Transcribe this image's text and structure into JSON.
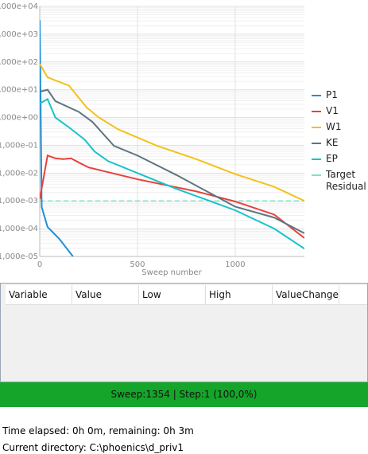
{
  "chart_data": {
    "type": "line",
    "xlabel": "Sweep number",
    "xlim": [
      0,
      1354
    ],
    "xticks": [
      0,
      500,
      1000
    ],
    "ylim": [
      1e-05,
      10000
    ],
    "log_y": true,
    "grid": true,
    "legend": "right",
    "yticks": [
      {
        "value": 10000,
        "label": "1,000e+04"
      },
      {
        "value": 1000,
        "label": "1,000e+03"
      },
      {
        "value": 100,
        "label": "1,000e+02"
      },
      {
        "value": 10,
        "label": "1,000e+01"
      },
      {
        "value": 1,
        "label": "1,000e+00"
      },
      {
        "value": 0.1,
        "label": "1,000e-01"
      },
      {
        "value": 0.01,
        "label": "1,000e-02"
      },
      {
        "value": 0.001,
        "label": "1,000e-03"
      },
      {
        "value": 0.0001,
        "label": "1,000e-04"
      },
      {
        "value": 1e-05,
        "label": "1,000e-05"
      }
    ],
    "series": [
      {
        "name": "P1",
        "color": "#1f8fd6",
        "x": [
          0,
          10,
          40,
          100,
          170
        ],
        "values": [
          3200,
          0.0006,
          0.000115,
          4.3e-05,
          1e-05
        ]
      },
      {
        "name": "V1",
        "color": "#e8413c",
        "x": [
          0,
          40,
          80,
          120,
          160,
          200,
          250,
          380,
          500,
          800,
          1000,
          1200,
          1354
        ],
        "values": [
          0.00115,
          0.043,
          0.034,
          0.032,
          0.034,
          0.024,
          0.016,
          0.0096,
          0.006,
          0.0022,
          0.00095,
          0.00032,
          4.6e-05
        ]
      },
      {
        "name": "W1",
        "color": "#f2c21b",
        "x": [
          0,
          40,
          150,
          240,
          300,
          400,
          600,
          800,
          1000,
          1200,
          1354
        ],
        "values": [
          85,
          28,
          14,
          2.3,
          1.03,
          0.38,
          0.096,
          0.032,
          0.0092,
          0.0032,
          0.001
        ]
      },
      {
        "name": "KE",
        "color": "#5f7580",
        "x": [
          0,
          40,
          80,
          200,
          270,
          380,
          500,
          700,
          1000,
          1200,
          1354
        ],
        "values": [
          8.5,
          10,
          3.9,
          1.6,
          0.69,
          0.095,
          0.043,
          0.0085,
          0.00062,
          0.00025,
          6.8e-05
        ]
      },
      {
        "name": "EP",
        "color": "#17c3c9",
        "x": [
          0,
          40,
          80,
          150,
          230,
          280,
          350,
          500,
          700,
          1000,
          1200,
          1354
        ],
        "values": [
          3.2,
          4.6,
          1.0,
          0.44,
          0.16,
          0.06,
          0.027,
          0.01,
          0.0027,
          0.00046,
          0.0001,
          1.9e-05
        ]
      }
    ],
    "target": {
      "name": "Target Residual",
      "value": 0.001,
      "color": "#7fe0c8"
    }
  },
  "table": {
    "headers": [
      "Variable",
      "Value",
      "Low",
      "High",
      "ValueChange"
    ]
  },
  "status": "Sweep:1354 | Step:1  (100,0%)",
  "footer": {
    "time": "Time elapsed: 0h 0m, remaining: 0h 3m",
    "directory": "Current directory:  C:\\phoenics\\d_priv1"
  }
}
